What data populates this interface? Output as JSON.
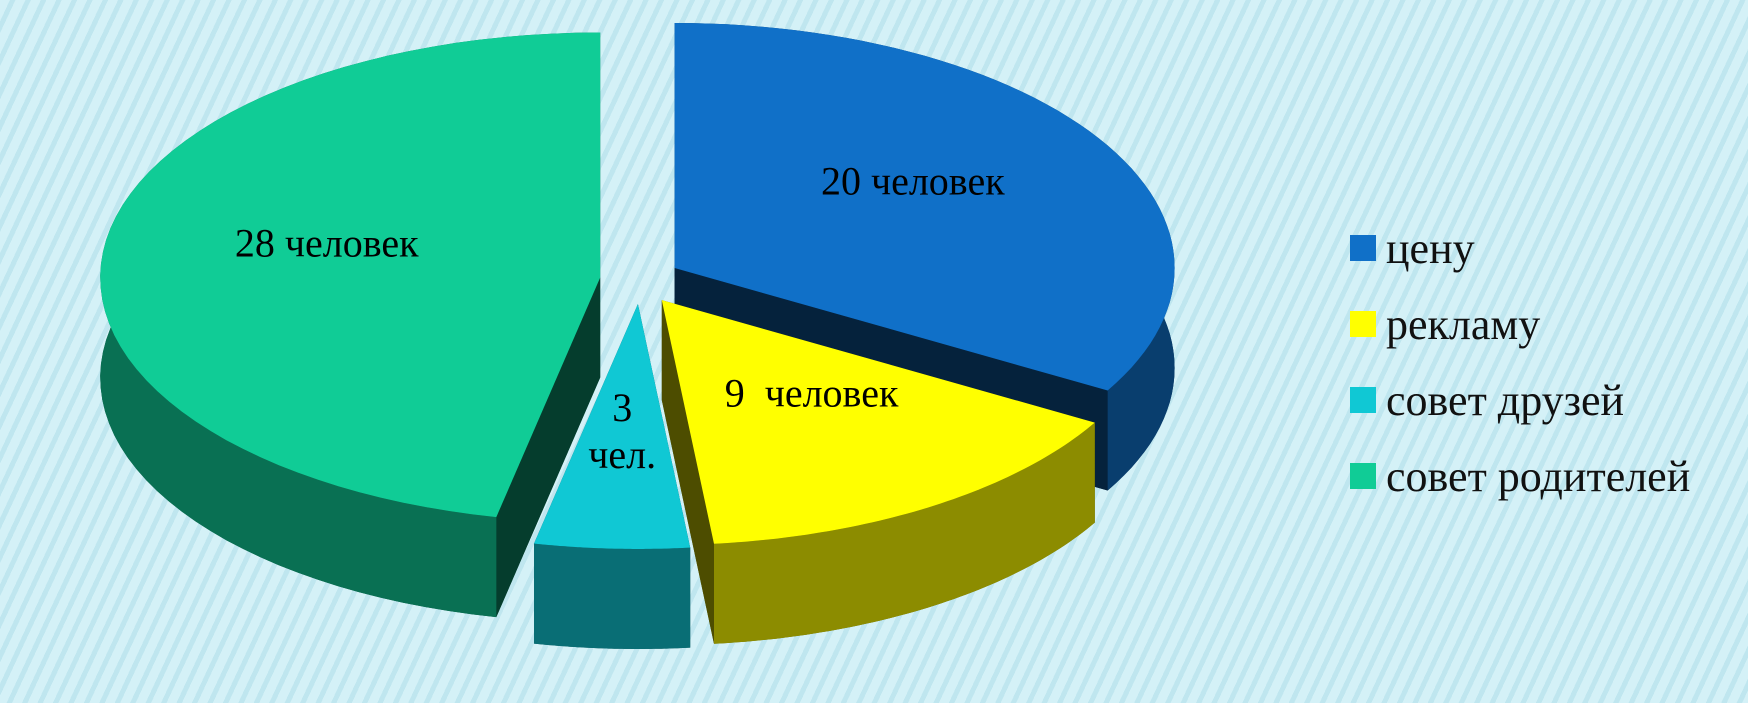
{
  "chart_data": {
    "type": "pie3d",
    "categories": [
      "цену",
      "рекламу",
      "совет друзей",
      "совет родителей"
    ],
    "values": [
      20,
      9,
      3,
      28
    ],
    "value_labels": [
      "20 человек",
      "9  человек",
      "3 чел.",
      "28 человек"
    ],
    "colors": [
      "#1070c8",
      "#ffff00",
      "#10c8d4",
      "#10cc96"
    ],
    "legend": "right"
  }
}
